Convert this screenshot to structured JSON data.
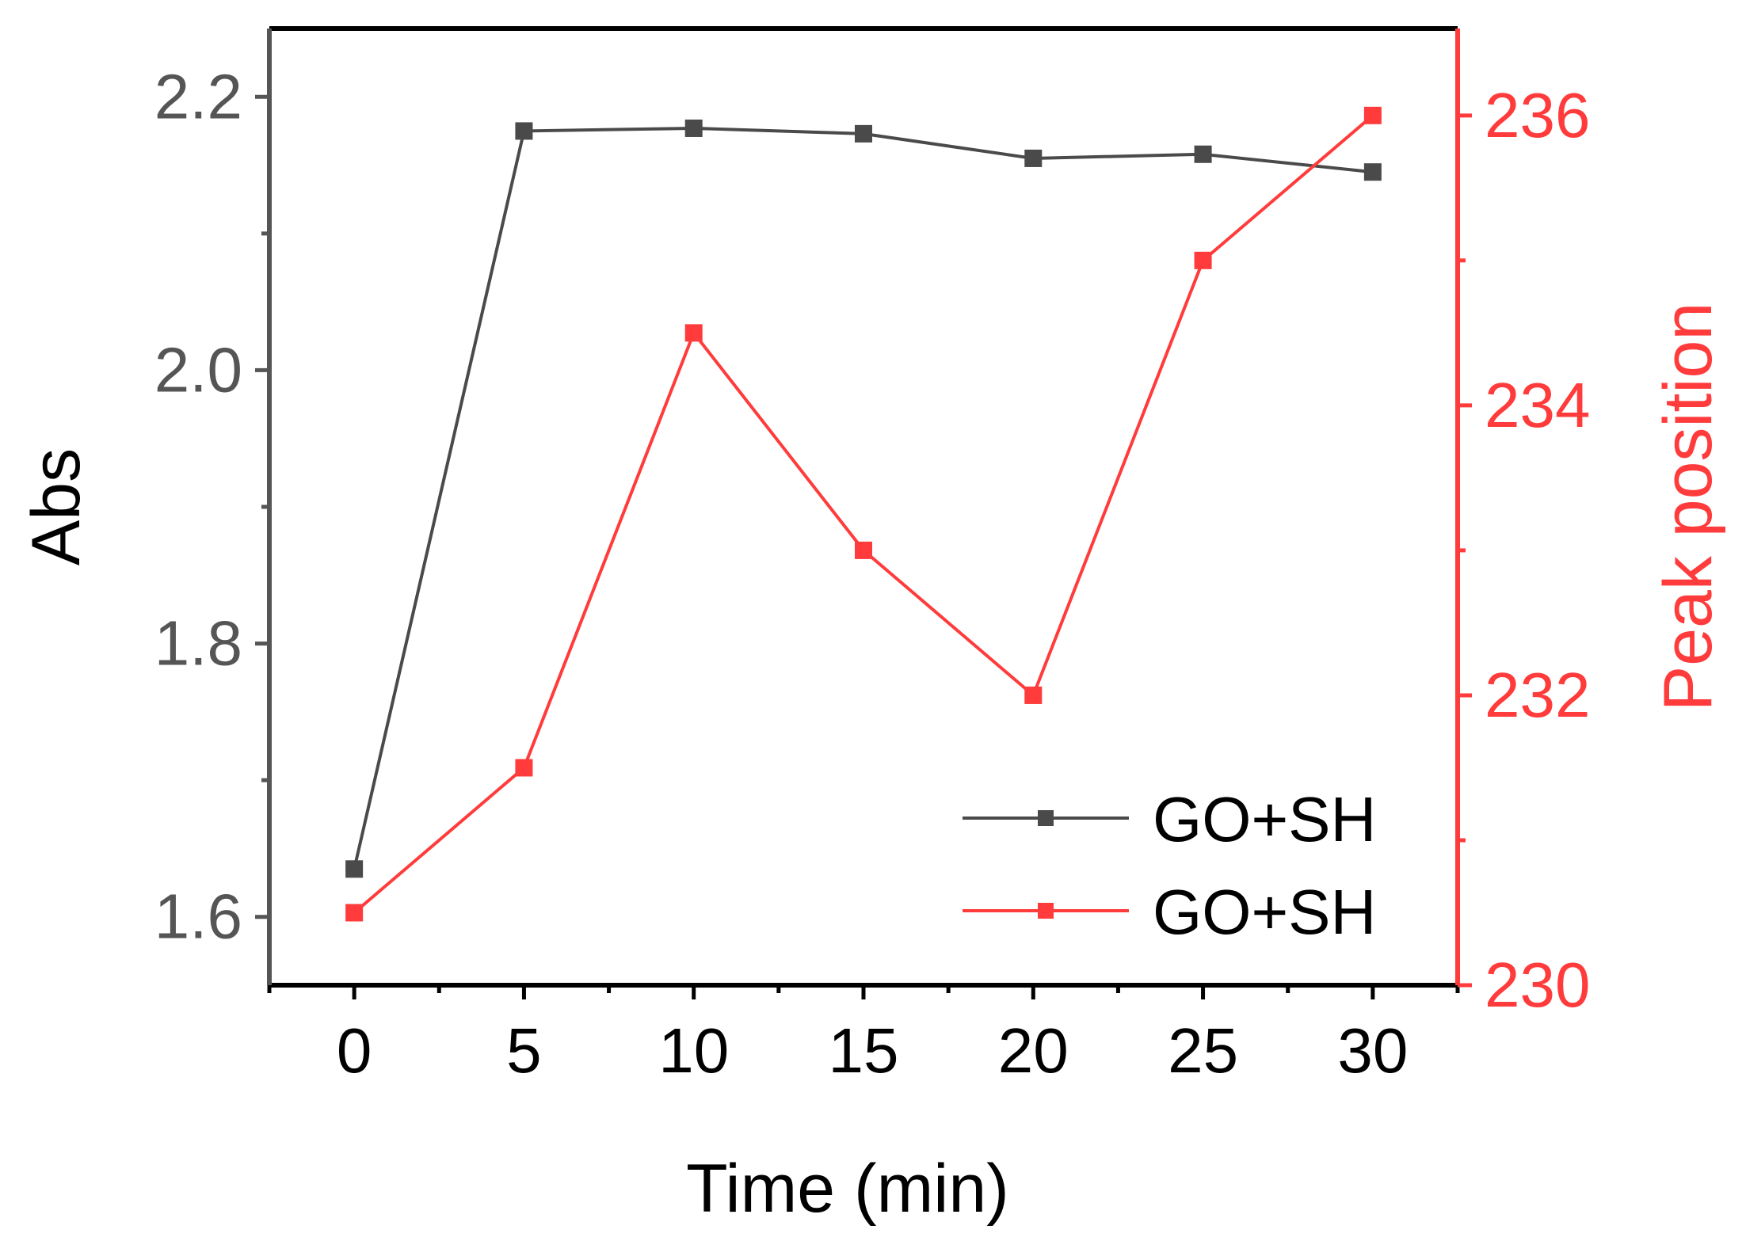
{
  "chart_data": {
    "type": "line",
    "xlabel": "Time (min)",
    "ylabel_left": "Abs",
    "ylabel_right": "Peak position",
    "x": [
      0,
      5,
      10,
      15,
      20,
      25,
      30
    ],
    "x_ticks": [
      0,
      5,
      10,
      15,
      20,
      25,
      30
    ],
    "x_tick_labels": [
      "0",
      "5",
      "10",
      "15",
      "20",
      "25",
      "30"
    ],
    "xlim": [
      -2.5,
      32.5
    ],
    "y_left_ticks": [
      1.6,
      1.8,
      2.0,
      2.2
    ],
    "y_left_tick_labels": [
      "1.6",
      "1.8",
      "2.0",
      "2.2"
    ],
    "y_left_lim": [
      1.55,
      2.25
    ],
    "y_right_ticks": [
      230,
      232,
      234,
      236
    ],
    "y_right_tick_labels": [
      "230",
      "232",
      "234",
      "236"
    ],
    "y_right_lim": [
      230,
      236.6
    ],
    "series": [
      {
        "name": "GO+SH",
        "axis": "left",
        "color": "#4a4a4a",
        "marker": "square",
        "values": [
          1.635,
          2.175,
          2.177,
          2.173,
          2.155,
          2.158,
          2.145
        ]
      },
      {
        "name": "GO+SH",
        "axis": "right",
        "color": "#ff3b3b",
        "marker": "square",
        "values": [
          230.5,
          231.5,
          234.5,
          233.0,
          232.0,
          235.0,
          236.0
        ]
      }
    ],
    "legend_position": "bottom-right",
    "grid": false,
    "left_axis_color": "#555555",
    "right_axis_color": "#ff3b3b"
  }
}
